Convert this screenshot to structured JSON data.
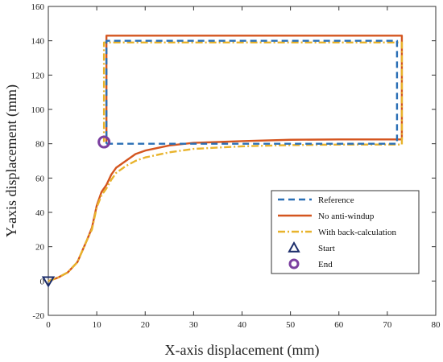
{
  "chart_data": {
    "type": "line",
    "xlabel": "X-axis displacement (mm)",
    "ylabel": "Y-axis displacement (mm)",
    "xlim": [
      0,
      80
    ],
    "ylim": [
      -20,
      160
    ],
    "xticks": [
      0,
      10,
      20,
      30,
      40,
      50,
      60,
      70,
      80
    ],
    "yticks": [
      -20,
      0,
      20,
      40,
      60,
      80,
      100,
      120,
      140,
      160
    ],
    "grid": false,
    "legend_position": "lower-right",
    "series": [
      {
        "name": "Reference",
        "color": "#2a6fb5",
        "style": "dashed",
        "points": [
          [
            12,
            80
          ],
          [
            72,
            80
          ],
          [
            72,
            140
          ],
          [
            12,
            140
          ],
          [
            12,
            80
          ]
        ]
      },
      {
        "name": "No anti-windup",
        "color": "#d4551f",
        "style": "solid",
        "points": [
          [
            0,
            0
          ],
          [
            2,
            2
          ],
          [
            4,
            5
          ],
          [
            6,
            11
          ],
          [
            8,
            24
          ],
          [
            9,
            31
          ],
          [
            10,
            44
          ],
          [
            11,
            52
          ],
          [
            12,
            56
          ],
          [
            13,
            62
          ],
          [
            14,
            66
          ],
          [
            16,
            70
          ],
          [
            18,
            74
          ],
          [
            20,
            76
          ],
          [
            25,
            79
          ],
          [
            30,
            80.5
          ],
          [
            40,
            81.5
          ],
          [
            50,
            82.3
          ],
          [
            60,
            82.5
          ],
          [
            73,
            82.5
          ],
          [
            73,
            143
          ],
          [
            12,
            143
          ],
          [
            12,
            80
          ]
        ]
      },
      {
        "name": "With back-calculation",
        "color": "#e8b32c",
        "style": "dashdot",
        "points": [
          [
            0,
            0
          ],
          [
            2,
            2
          ],
          [
            4,
            5
          ],
          [
            6,
            11
          ],
          [
            8,
            24
          ],
          [
            9,
            30
          ],
          [
            10,
            43
          ],
          [
            11,
            50
          ],
          [
            12,
            54
          ],
          [
            13,
            59
          ],
          [
            14,
            63
          ],
          [
            16,
            67
          ],
          [
            18,
            70
          ],
          [
            20,
            72
          ],
          [
            25,
            75
          ],
          [
            30,
            77
          ],
          [
            40,
            78.5
          ],
          [
            50,
            79.2
          ],
          [
            60,
            79.5
          ],
          [
            73,
            79.5
          ],
          [
            73,
            139
          ],
          [
            11.5,
            139
          ],
          [
            11.5,
            81
          ]
        ]
      }
    ],
    "markers": [
      {
        "name": "Start",
        "shape": "triangle-down",
        "color": "#1c2d6b",
        "x": 0,
        "y": 0
      },
      {
        "name": "End",
        "shape": "circle",
        "color": "#7b3fa0",
        "x": 11.5,
        "y": 81
      }
    ]
  }
}
